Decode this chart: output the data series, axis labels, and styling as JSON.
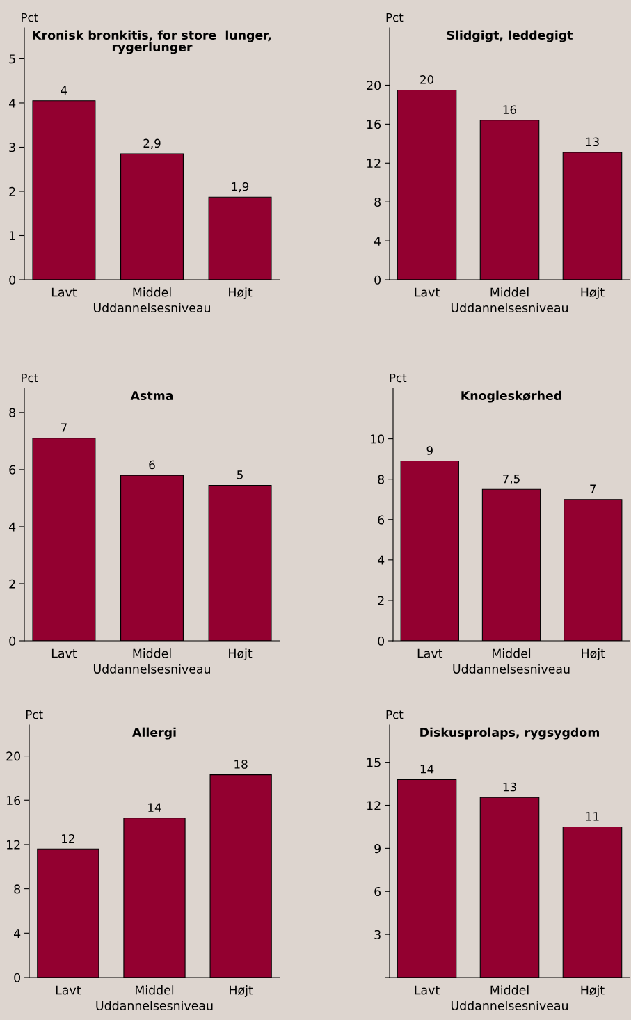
{
  "chart_data": [
    {
      "type": "bar",
      "title": "Kronisk bronkitis, for store  lunger,\nrygerlunger",
      "ylabel": "Pct",
      "xlabel": "Uddannelsesniveau",
      "categories": [
        "Lavt",
        "Middel",
        "Højt"
      ],
      "values": [
        4.05,
        2.85,
        1.87
      ],
      "value_labels": [
        "4",
        "2,9",
        "1,9"
      ],
      "color": "#930030",
      "ylim": [
        0,
        5.7
      ],
      "yticks": [
        0,
        1,
        2,
        3,
        4,
        5
      ],
      "grid": false
    },
    {
      "type": "bar",
      "title": "Slidgigt, leddegigt",
      "ylabel": "Pct",
      "xlabel": "Uddannelsesniveau",
      "categories": [
        "Lavt",
        "Middel",
        "Højt"
      ],
      "values": [
        19.5,
        16.4,
        13.1
      ],
      "value_labels": [
        "20",
        "16",
        "13"
      ],
      "color": "#930030",
      "ylim": [
        0,
        25.9
      ],
      "yticks": [
        0,
        4,
        8,
        12,
        16,
        20
      ],
      "grid": false
    },
    {
      "type": "bar",
      "title": "Astma",
      "ylabel": "Pct",
      "xlabel": "Uddannelsesniveau",
      "categories": [
        "Lavt",
        "Middel",
        "Højt"
      ],
      "values": [
        7.1,
        5.8,
        5.45
      ],
      "value_labels": [
        "7",
        "6",
        "5"
      ],
      "color": "#930030",
      "ylim": [
        0,
        8.85
      ],
      "yticks": [
        0,
        2,
        4,
        6,
        8
      ],
      "grid": false
    },
    {
      "type": "bar",
      "title": "Knogleskørhed",
      "ylabel": "Pct",
      "xlabel": "Uddannelsesniveau",
      "categories": [
        "Lavt",
        "Middel",
        "Højt"
      ],
      "values": [
        8.9,
        7.5,
        7.0
      ],
      "value_labels": [
        "9",
        "7,5",
        "7"
      ],
      "color": "#930030",
      "ylim": [
        0,
        12.5
      ],
      "yticks": [
        0,
        2,
        4,
        6,
        8,
        10
      ],
      "grid": false
    },
    {
      "type": "bar",
      "title": "Allergi",
      "ylabel": "Pct",
      "xlabel": "Uddannelsesniveau",
      "categories": [
        "Lavt",
        "Middel",
        "Højt"
      ],
      "values": [
        11.6,
        14.4,
        18.3
      ],
      "value_labels": [
        "12",
        "14",
        "18"
      ],
      "color": "#930030",
      "ylim": [
        0,
        22.8
      ],
      "yticks": [
        0,
        4,
        8,
        12,
        16,
        20
      ],
      "grid": false
    },
    {
      "type": "bar",
      "title": "Diskusprolaps, rygsygdom",
      "ylabel": "Pct",
      "xlabel": "Uddannelsesniveau",
      "categories": [
        "Lavt",
        "Middel",
        "Højt"
      ],
      "values": [
        13.8,
        12.55,
        10.5
      ],
      "value_labels": [
        "14",
        "13",
        "11"
      ],
      "color": "#930030",
      "ylim": [
        0,
        17.6
      ],
      "yticks": [
        {
          "value": 0,
          "label": null
        },
        3,
        6,
        9,
        12,
        15
      ],
      "grid": false
    }
  ]
}
